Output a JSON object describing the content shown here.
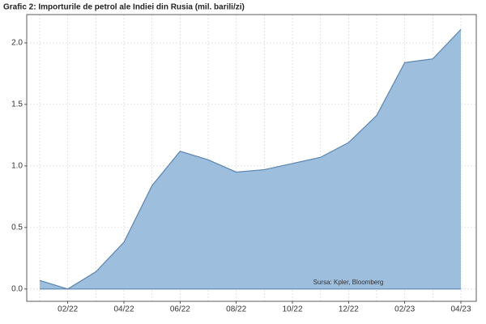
{
  "chart_data": {
    "type": "area",
    "title": "Grafic 2: Importurile de petrol ale Indiei din Rusia (mil. barili/zi)",
    "annotation": "Sursa: Kpler, Bloomberg",
    "categories": [
      null,
      "02/22",
      null,
      "04/22",
      null,
      "06/22",
      null,
      "08/22",
      null,
      "10/22",
      null,
      "12/22",
      null,
      "02/23",
      null,
      "04/23"
    ],
    "values": [
      0.07,
      0.0,
      0.14,
      0.38,
      0.84,
      1.12,
      1.05,
      0.95,
      0.97,
      1.02,
      1.07,
      1.19,
      1.41,
      1.84,
      1.87,
      2.11
    ],
    "color": "#9dbedc",
    "line_color": "#5b85b0",
    "ylim": [
      -0.1,
      2.23
    ],
    "yticks": [
      {
        "value": 0,
        "label": "0.0"
      },
      {
        "value": 0.5,
        "label": "0.5"
      },
      {
        "value": 1,
        "label": "1.0"
      },
      {
        "value": 1.5,
        "label": "1.5"
      },
      {
        "value": 2,
        "label": "2.0"
      }
    ],
    "grid": true
  }
}
